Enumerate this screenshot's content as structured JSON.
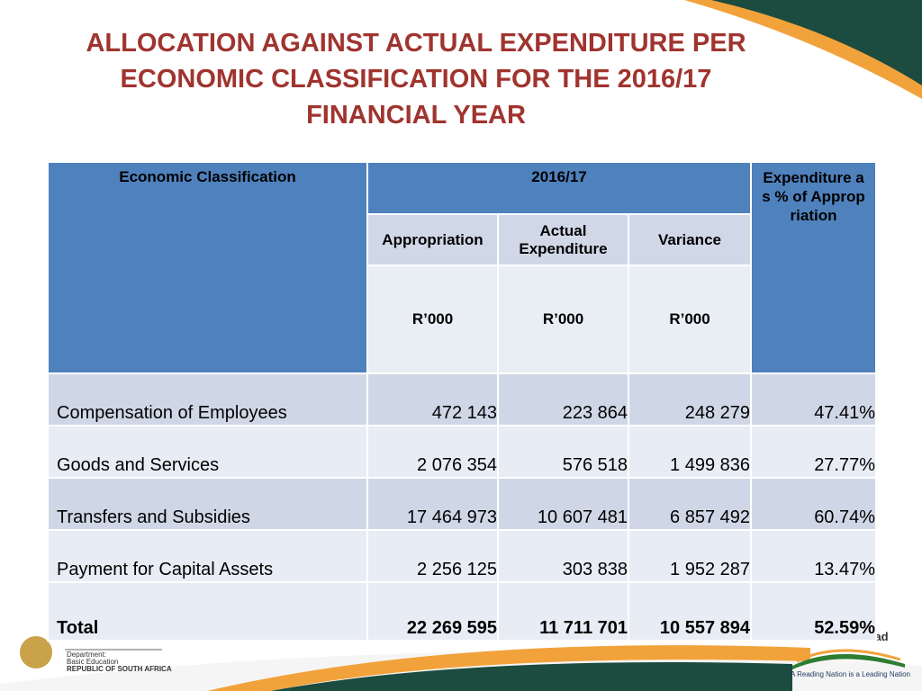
{
  "title": [
    "ALLOCATION AGAINST ACTUAL EXPENDITURE PER",
    "ECONOMIC CLASSIFICATION FOR THE 2016/17",
    "FINANCIAL YEAR"
  ],
  "table": {
    "header": {
      "classification": "Economic Classification",
      "period": "2016/17",
      "percentage": "Expenditure as % of Appropriation",
      "columns": [
        "Appropriation",
        "Actual Expenditure",
        "Variance"
      ],
      "units": [
        "R’000",
        "R’000",
        "R’000"
      ]
    },
    "rows": [
      [
        "Compensation of Employees",
        "472 143",
        "223 864",
        "248 279",
        "47.41%"
      ],
      [
        "Goods and Services",
        "2 076 354",
        "576 518",
        "1 499 836",
        "27.77%"
      ],
      [
        "Transfers and Subsidies",
        "17 464 973",
        "10 607 481",
        "6 857 492",
        "60.74%"
      ],
      [
        "Payment for Capital Assets",
        "2 256 125",
        "303 838",
        "1 952 287",
        "13.47%"
      ]
    ],
    "total": [
      "Total",
      "22 269 595",
      "11 711 701",
      "10 557 894",
      "52.59%"
    ]
  },
  "footer": {
    "department": [
      "Department:",
      "Basic Education",
      "REPUBLIC OF SOUTH AFRICA"
    ],
    "slogan": "Read to Lead",
    "tagline": "A Reading Nation is a Leading Nation"
  }
}
